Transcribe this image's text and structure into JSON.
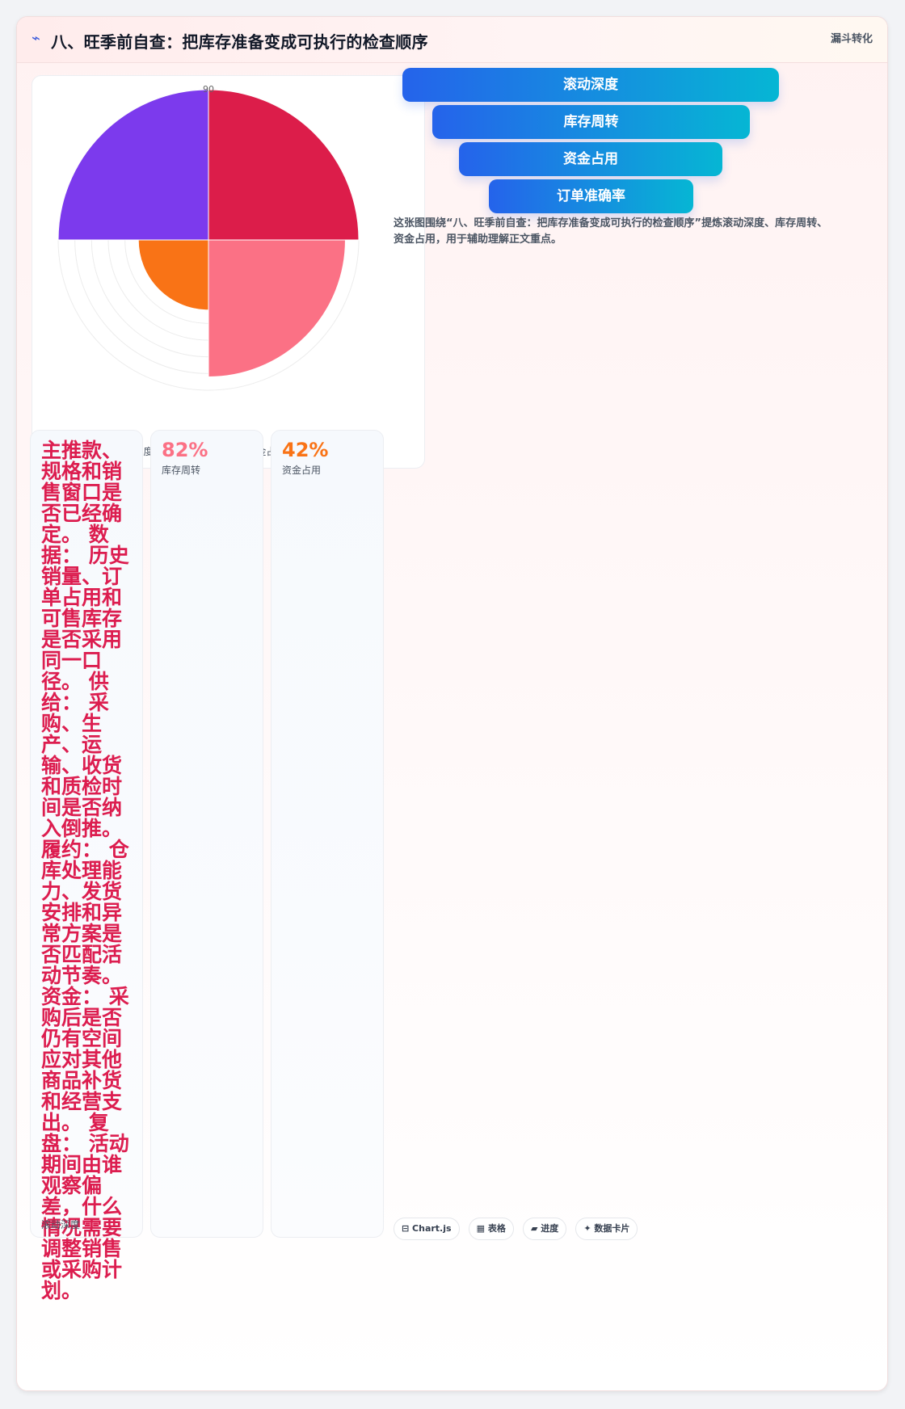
{
  "header": {
    "icon": "chart-line-icon",
    "title": "八、旺季前自查：把库存准备变成可执行的检查顺序",
    "badge": "漏斗转化"
  },
  "chart_data": {
    "type": "polarArea",
    "categories": [
      "滚动深度",
      "库存周转",
      "资金占用",
      "订单准确率"
    ],
    "values": [
      90,
      82,
      42,
      90
    ],
    "colors": [
      "#dc1d4a",
      "#fb7185",
      "#f97316",
      "#7c3aed"
    ],
    "r_max": 90,
    "tick_label": "90",
    "legend_position": "bottom"
  },
  "funnel": {
    "steps": [
      "滚动深度",
      "库存周转",
      "资金占用",
      "订单准确率"
    ]
  },
  "caption": "这张图围绕“八、旺季前自查：把库存准备变成可执行的检查顺序”提炼滚动深度、库存周转、资金占用，用于辅助理解正文重点。",
  "cards": [
    {
      "text": "主推款、规格和销售窗口是否已经确定。 数据： 历史销量、订单占用和可售库存是否采用同一口径。 供给： 采购、生产、运输、收货和质检时间是否纳入倒推。 履约： 仓库处理能力、发货安排和异常方案是否匹配活动节奏。 资金： 采购后是否仍有空间应对其他商品补货和经营支出。 复盘： 活动期间由谁观察偏差，什么情况需要调整销售或采购计划。",
      "label": "滚动深度",
      "color": "#dc1d4f"
    },
    {
      "value": "82%",
      "label": "库存周转",
      "color": "#fb7185"
    },
    {
      "value": "42%",
      "label": "资金占用",
      "color": "#f97316"
    }
  ],
  "tags": [
    "⊟ Chart.js",
    "▦ 表格",
    "▰ 进度",
    "✦ 数据卡片"
  ]
}
